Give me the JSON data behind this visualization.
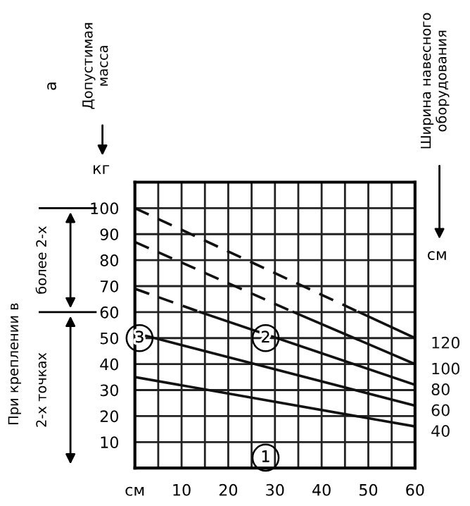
{
  "chart_data": {
    "type": "line",
    "title": "а",
    "annotations": [
      "Допустимая\nмасса",
      "кг",
      "см",
      "При креплении в",
      "более 2-х",
      "2-х точках",
      "Ширина навесного\nоборудования",
      "1",
      "2",
      "3"
    ],
    "series": [
      {
        "color": "#111111",
        "line_style": "dashed",
        "x": [
          0,
          48
        ],
        "values": [
          100,
          60
        ]
      },
      {
        "name": "120",
        "color": "#111111",
        "line_style": "solid",
        "x": [
          48,
          60
        ],
        "values": [
          60,
          50
        ]
      },
      {
        "color": "#111111",
        "line_style": "dashed",
        "x": [
          0,
          34
        ],
        "values": [
          87,
          60
        ]
      },
      {
        "name": "100",
        "color": "#111111",
        "line_style": "solid",
        "x": [
          34,
          60
        ],
        "values": [
          60,
          40
        ]
      },
      {
        "color": "#111111",
        "line_style": "dashed",
        "x": [
          0,
          14
        ],
        "values": [
          69,
          60
        ]
      },
      {
        "name": "80",
        "color": "#111111",
        "line_style": "solid",
        "x": [
          14,
          60
        ],
        "values": [
          60,
          32
        ]
      },
      {
        "name": "60",
        "color": "#111111",
        "line_style": "solid",
        "x": [
          0,
          60
        ],
        "values": [
          52,
          24
        ]
      },
      {
        "name": "40",
        "color": "#111111",
        "line_style": "solid",
        "x": [
          0,
          60
        ],
        "values": [
          35,
          16
        ]
      }
    ],
    "xlim": [
      0,
      60
    ],
    "xticks": [
      {
        "value": 0,
        "label": "см"
      },
      {
        "value": 5,
        "label": null
      },
      10,
      {
        "value": 15,
        "label": null
      },
      20,
      {
        "value": 25,
        "label": null
      },
      30,
      {
        "value": 35,
        "label": null
      },
      40,
      {
        "value": 45,
        "label": null
      },
      50,
      {
        "value": 55,
        "label": null
      },
      60
    ],
    "ylim": [
      0,
      110
    ],
    "yticks": [
      10,
      20,
      30,
      40,
      50,
      60,
      70,
      80,
      90,
      100
    ],
    "grid": true,
    "marker": "none"
  }
}
